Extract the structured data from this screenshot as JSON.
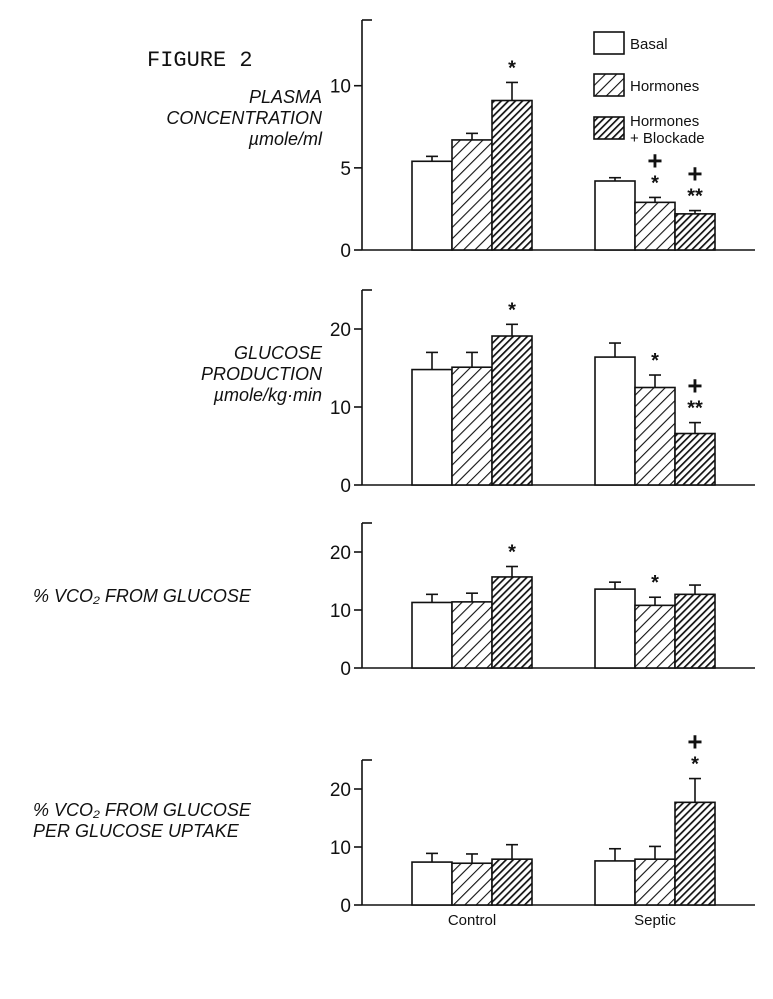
{
  "figure_label": "FIGURE 2",
  "categories": [
    "Control",
    "Septic"
  ],
  "legend": [
    {
      "key": "basal",
      "lines": [
        "Basal"
      ],
      "fill": "white"
    },
    {
      "key": "hormones",
      "lines": [
        "Hormones"
      ],
      "fill": "light-hatch"
    },
    {
      "key": "hormones_blockade",
      "lines": [
        "Hormones",
        "+ Blockade"
      ],
      "fill": "dense-hatch"
    }
  ],
  "panel_labels": [
    {
      "lines": [
        "PLASMA",
        "CONCENTRATION",
        "µmole/ml"
      ]
    },
    {
      "lines": [
        "GLUCOSE",
        "PRODUCTION",
        "µmole/kg·min"
      ]
    },
    {
      "lines": [
        "% VCO₂ FROM GLUCOSE"
      ]
    },
    {
      "lines": [
        "% VCO₂ FROM GLUCOSE",
        "PER GLUCOSE UPTAKE"
      ]
    }
  ],
  "chart_data": [
    {
      "type": "bar",
      "ylabel": "PLASMA CONCENTRATION µmole/ml",
      "categories": [
        "Control",
        "Septic"
      ],
      "ylim": [
        0,
        14
      ],
      "yticks": [
        0,
        5,
        10
      ],
      "series": [
        {
          "name": "Basal",
          "values": [
            5.4,
            4.2
          ],
          "errors": [
            0.3,
            0.2
          ]
        },
        {
          "name": "Hormones",
          "values": [
            6.7,
            2.9
          ],
          "errors": [
            0.4,
            0.3
          ]
        },
        {
          "name": "Hormones + Blockade",
          "values": [
            9.1,
            2.2
          ],
          "errors": [
            1.1,
            0.2
          ]
        }
      ],
      "markers": [
        {
          "category": "Control",
          "series": "Hormones + Blockade",
          "symbols": [
            "*"
          ]
        },
        {
          "category": "Septic",
          "series": "Hormones",
          "symbols": [
            "+",
            "*"
          ]
        },
        {
          "category": "Septic",
          "series": "Hormones + Blockade",
          "symbols": [
            "+",
            "**"
          ]
        }
      ],
      "legend": "top-right"
    },
    {
      "type": "bar",
      "ylabel": "GLUCOSE PRODUCTION µmole/kg·min",
      "categories": [
        "Control",
        "Septic"
      ],
      "ylim": [
        0,
        25
      ],
      "yticks": [
        0,
        10,
        20
      ],
      "series": [
        {
          "name": "Basal",
          "values": [
            14.8,
            16.4
          ],
          "errors": [
            2.2,
            1.8
          ]
        },
        {
          "name": "Hormones",
          "values": [
            15.1,
            12.5
          ],
          "errors": [
            1.9,
            1.6
          ]
        },
        {
          "name": "Hormones + Blockade",
          "values": [
            19.1,
            6.6
          ],
          "errors": [
            1.5,
            1.4
          ]
        }
      ],
      "markers": [
        {
          "category": "Control",
          "series": "Hormones + Blockade",
          "symbols": [
            "*"
          ]
        },
        {
          "category": "Septic",
          "series": "Hormones",
          "symbols": [
            "*"
          ]
        },
        {
          "category": "Septic",
          "series": "Hormones + Blockade",
          "symbols": [
            "+",
            "**"
          ]
        }
      ]
    },
    {
      "type": "bar",
      "ylabel": "% VCO₂ FROM GLUCOSE",
      "categories": [
        "Control",
        "Septic"
      ],
      "ylim": [
        0,
        25
      ],
      "yticks": [
        0,
        10,
        20
      ],
      "series": [
        {
          "name": "Basal",
          "values": [
            11.3,
            13.6
          ],
          "errors": [
            1.4,
            1.2
          ]
        },
        {
          "name": "Hormones",
          "values": [
            11.4,
            10.8
          ],
          "errors": [
            1.5,
            1.4
          ]
        },
        {
          "name": "Hormones + Blockade",
          "values": [
            15.7,
            12.7
          ],
          "errors": [
            1.8,
            1.6
          ]
        }
      ],
      "markers": [
        {
          "category": "Control",
          "series": "Hormones + Blockade",
          "symbols": [
            "*"
          ]
        },
        {
          "category": "Septic",
          "series": "Hormones",
          "symbols": [
            "*"
          ]
        }
      ]
    },
    {
      "type": "bar",
      "ylabel": "% VCO₂ FROM GLUCOSE PER GLUCOSE UPTAKE",
      "categories": [
        "Control",
        "Septic"
      ],
      "ylim": [
        0,
        25
      ],
      "yticks": [
        0,
        10,
        20
      ],
      "series": [
        {
          "name": "Basal",
          "values": [
            7.4,
            7.6
          ],
          "errors": [
            1.5,
            2.1
          ]
        },
        {
          "name": "Hormones",
          "values": [
            7.2,
            7.9
          ],
          "errors": [
            1.6,
            2.2
          ]
        },
        {
          "name": "Hormones + Blockade",
          "values": [
            7.9,
            17.7
          ],
          "errors": [
            2.5,
            4.1
          ]
        }
      ],
      "markers": [
        {
          "category": "Septic",
          "series": "Hormones + Blockade",
          "symbols": [
            "+",
            "*"
          ]
        }
      ]
    }
  ]
}
